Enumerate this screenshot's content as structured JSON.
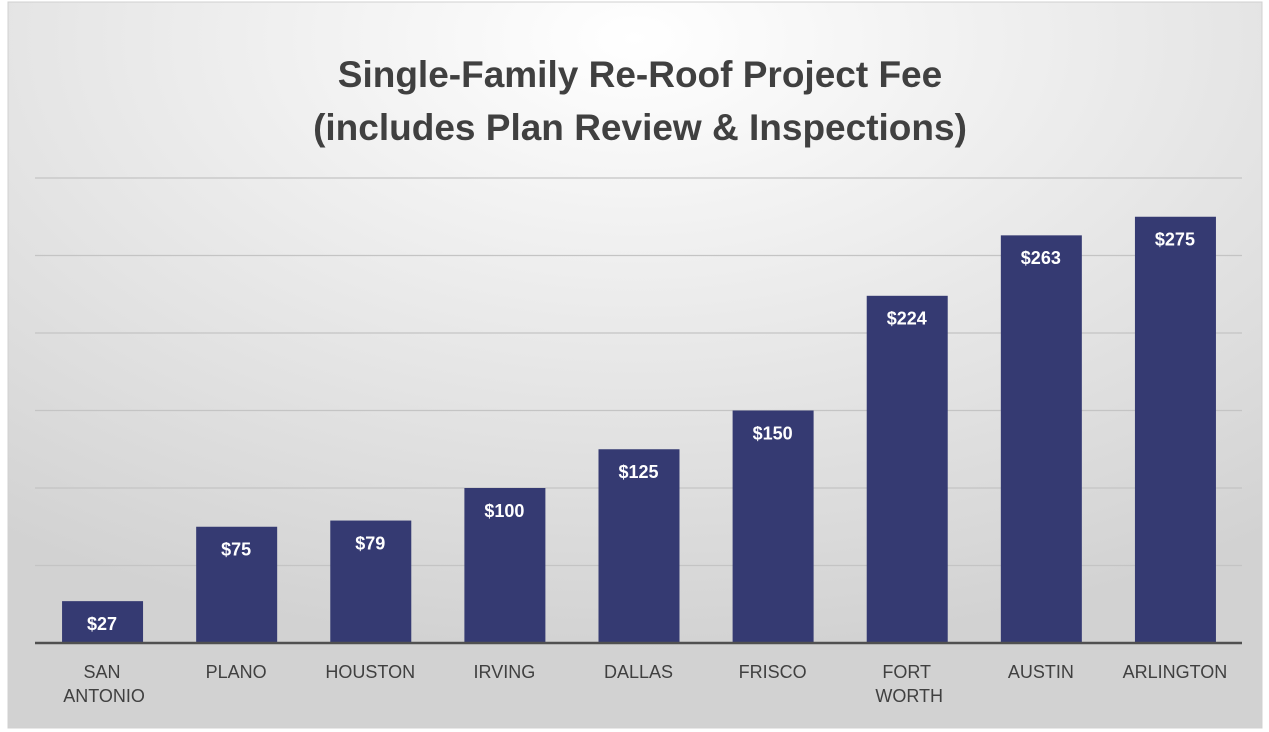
{
  "chart_data": {
    "type": "bar",
    "title": "Single-Family Re-Roof Project Fee",
    "subtitle": "(includes Plan Review & Inspections)",
    "categories": [
      "SAN ANTONIO",
      "PLANO",
      "HOUSTON",
      "IRVING",
      "DALLAS",
      "FRISCO",
      "FORT WORTH",
      "AUSTIN",
      "ARLINGTON"
    ],
    "values": [
      27,
      75,
      79,
      100,
      125,
      150,
      224,
      263,
      275
    ],
    "value_labels": [
      "$27",
      "$75",
      "$79",
      "$100",
      "$125",
      "$150",
      "$224",
      "$263",
      "$275"
    ],
    "color": "#353a72",
    "ylim": [
      0,
      300
    ],
    "yticks": [
      0,
      50,
      100,
      150,
      200,
      250,
      300
    ],
    "grid": true
  }
}
